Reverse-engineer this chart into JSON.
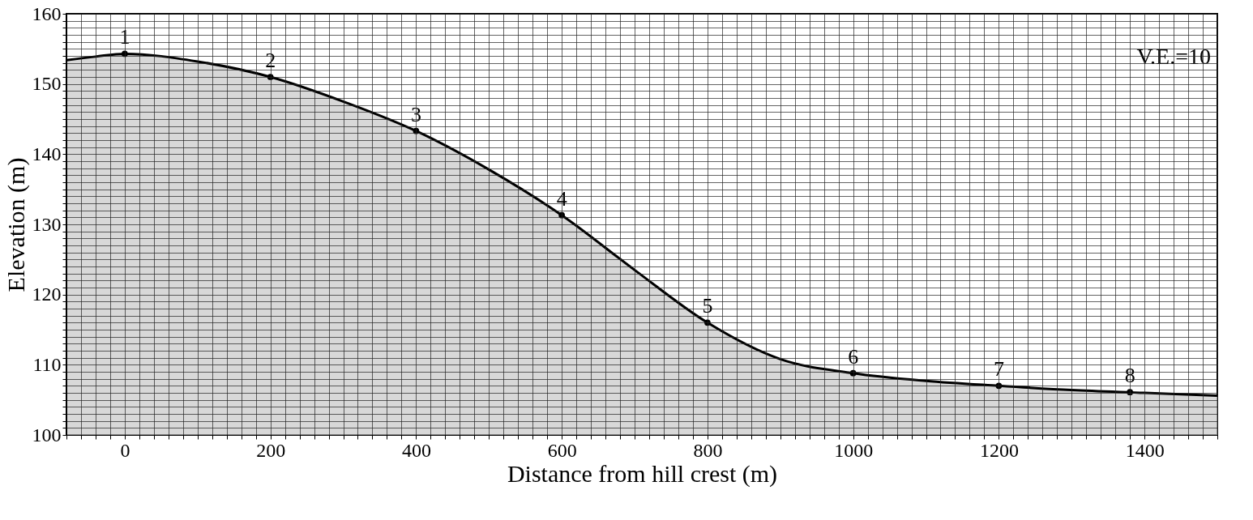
{
  "chart_data": {
    "type": "area",
    "xlabel": "Distance from hill crest (m)",
    "ylabel": "Elevation (m)",
    "xlim": [
      -80,
      1500
    ],
    "ylim": [
      100,
      160
    ],
    "xticks": [
      {
        "value": -80,
        "label": null
      },
      {
        "value": -60,
        "label": null
      },
      {
        "value": -40,
        "label": null
      },
      {
        "value": -20,
        "label": null
      },
      0,
      {
        "value": 20,
        "label": null
      },
      {
        "value": 40,
        "label": null
      },
      {
        "value": 60,
        "label": null
      },
      {
        "value": 80,
        "label": null
      },
      {
        "value": 100,
        "label": null
      },
      {
        "value": 120,
        "label": null
      },
      {
        "value": 140,
        "label": null
      },
      {
        "value": 160,
        "label": null
      },
      {
        "value": 180,
        "label": null
      },
      200,
      {
        "value": 220,
        "label": null
      },
      {
        "value": 240,
        "label": null
      },
      {
        "value": 260,
        "label": null
      },
      {
        "value": 280,
        "label": null
      },
      {
        "value": 300,
        "label": null
      },
      {
        "value": 320,
        "label": null
      },
      {
        "value": 340,
        "label": null
      },
      {
        "value": 360,
        "label": null
      },
      {
        "value": 380,
        "label": null
      },
      400,
      {
        "value": 420,
        "label": null
      },
      {
        "value": 440,
        "label": null
      },
      {
        "value": 460,
        "label": null
      },
      {
        "value": 480,
        "label": null
      },
      {
        "value": 500,
        "label": null
      },
      {
        "value": 520,
        "label": null
      },
      {
        "value": 540,
        "label": null
      },
      {
        "value": 560,
        "label": null
      },
      {
        "value": 580,
        "label": null
      },
      600,
      {
        "value": 620,
        "label": null
      },
      {
        "value": 640,
        "label": null
      },
      {
        "value": 660,
        "label": null
      },
      {
        "value": 680,
        "label": null
      },
      {
        "value": 700,
        "label": null
      },
      {
        "value": 720,
        "label": null
      },
      {
        "value": 740,
        "label": null
      },
      {
        "value": 760,
        "label": null
      },
      {
        "value": 780,
        "label": null
      },
      800,
      {
        "value": 820,
        "label": null
      },
      {
        "value": 840,
        "label": null
      },
      {
        "value": 860,
        "label": null
      },
      {
        "value": 880,
        "label": null
      },
      {
        "value": 900,
        "label": null
      },
      {
        "value": 920,
        "label": null
      },
      {
        "value": 940,
        "label": null
      },
      {
        "value": 960,
        "label": null
      },
      {
        "value": 980,
        "label": null
      },
      1000,
      {
        "value": 1020,
        "label": null
      },
      {
        "value": 1040,
        "label": null
      },
      {
        "value": 1060,
        "label": null
      },
      {
        "value": 1080,
        "label": null
      },
      {
        "value": 1100,
        "label": null
      },
      {
        "value": 1120,
        "label": null
      },
      {
        "value": 1140,
        "label": null
      },
      {
        "value": 1160,
        "label": null
      },
      {
        "value": 1180,
        "label": null
      },
      1200,
      {
        "value": 1220,
        "label": null
      },
      {
        "value": 1240,
        "label": null
      },
      {
        "value": 1260,
        "label": null
      },
      {
        "value": 1280,
        "label": null
      },
      {
        "value": 1300,
        "label": null
      },
      {
        "value": 1320,
        "label": null
      },
      {
        "value": 1340,
        "label": null
      },
      {
        "value": 1360,
        "label": null
      },
      {
        "value": 1380,
        "label": null
      },
      1400,
      {
        "value": 1420,
        "label": null
      },
      {
        "value": 1440,
        "label": null
      },
      {
        "value": 1460,
        "label": null
      },
      {
        "value": 1480,
        "label": null
      },
      {
        "value": 1500,
        "label": null
      }
    ],
    "yticks": [
      100,
      {
        "value": 101,
        "label": null
      },
      {
        "value": 102,
        "label": null
      },
      {
        "value": 103,
        "label": null
      },
      {
        "value": 104,
        "label": null
      },
      {
        "value": 105,
        "label": null
      },
      {
        "value": 106,
        "label": null
      },
      {
        "value": 107,
        "label": null
      },
      {
        "value": 108,
        "label": null
      },
      {
        "value": 109,
        "label": null
      },
      110,
      {
        "value": 111,
        "label": null
      },
      {
        "value": 112,
        "label": null
      },
      {
        "value": 113,
        "label": null
      },
      {
        "value": 114,
        "label": null
      },
      {
        "value": 115,
        "label": null
      },
      {
        "value": 116,
        "label": null
      },
      {
        "value": 117,
        "label": null
      },
      {
        "value": 118,
        "label": null
      },
      {
        "value": 119,
        "label": null
      },
      120,
      {
        "value": 121,
        "label": null
      },
      {
        "value": 122,
        "label": null
      },
      {
        "value": 123,
        "label": null
      },
      {
        "value": 124,
        "label": null
      },
      {
        "value": 125,
        "label": null
      },
      {
        "value": 126,
        "label": null
      },
      {
        "value": 127,
        "label": null
      },
      {
        "value": 128,
        "label": null
      },
      {
        "value": 129,
        "label": null
      },
      130,
      {
        "value": 131,
        "label": null
      },
      {
        "value": 132,
        "label": null
      },
      {
        "value": 133,
        "label": null
      },
      {
        "value": 134,
        "label": null
      },
      {
        "value": 135,
        "label": null
      },
      {
        "value": 136,
        "label": null
      },
      {
        "value": 137,
        "label": null
      },
      {
        "value": 138,
        "label": null
      },
      {
        "value": 139,
        "label": null
      },
      140,
      {
        "value": 141,
        "label": null
      },
      {
        "value": 142,
        "label": null
      },
      {
        "value": 143,
        "label": null
      },
      {
        "value": 144,
        "label": null
      },
      {
        "value": 145,
        "label": null
      },
      {
        "value": 146,
        "label": null
      },
      {
        "value": 147,
        "label": null
      },
      {
        "value": 148,
        "label": null
      },
      {
        "value": 149,
        "label": null
      },
      150,
      {
        "value": 151,
        "label": null
      },
      {
        "value": 152,
        "label": null
      },
      {
        "value": 153,
        "label": null
      },
      {
        "value": 154,
        "label": null
      },
      {
        "value": 155,
        "label": null
      },
      {
        "value": 156,
        "label": null
      },
      {
        "value": 157,
        "label": null
      },
      {
        "value": 158,
        "label": null
      },
      {
        "value": 159,
        "label": null
      },
      160
    ],
    "grid": true,
    "series": [
      {
        "color": "#c8c8c8",
        "x": [
          -80,
          -40,
          0,
          100,
          200,
          300,
          400,
          500,
          600,
          700,
          800,
          900,
          1000,
          1100,
          1200,
          1300,
          1400,
          1500
        ],
        "values": [
          153.4,
          153.9,
          154.3,
          153.2,
          151,
          147.5,
          143.3,
          137.8,
          131.3,
          123.5,
          116,
          110.8,
          108.8,
          107.7,
          107,
          106.4,
          106,
          105.6
        ]
      },
      {
        "type": "scatter",
        "color": "#000000",
        "marker": "circle",
        "x": [
          0,
          200,
          400,
          600,
          800,
          1000,
          1200,
          1380
        ],
        "values": [
          154.3,
          151,
          143.3,
          131.3,
          116,
          108.8,
          107,
          106.1
        ]
      }
    ],
    "annotations": [
      {
        "text": "1",
        "x": 0,
        "y": 154.3
      },
      {
        "text": "2",
        "x": 200,
        "y": 151
      },
      {
        "text": "3",
        "x": 400,
        "y": 143.3
      },
      {
        "text": "4",
        "x": 600,
        "y": 131.3
      },
      {
        "text": "5",
        "x": 800,
        "y": 116
      },
      {
        "text": "6",
        "x": 1000,
        "y": 108.8
      },
      {
        "text": "7",
        "x": 1200,
        "y": 107
      },
      {
        "text": "8",
        "x": 1380,
        "y": 106.1
      },
      "V.E.=10"
    ]
  }
}
